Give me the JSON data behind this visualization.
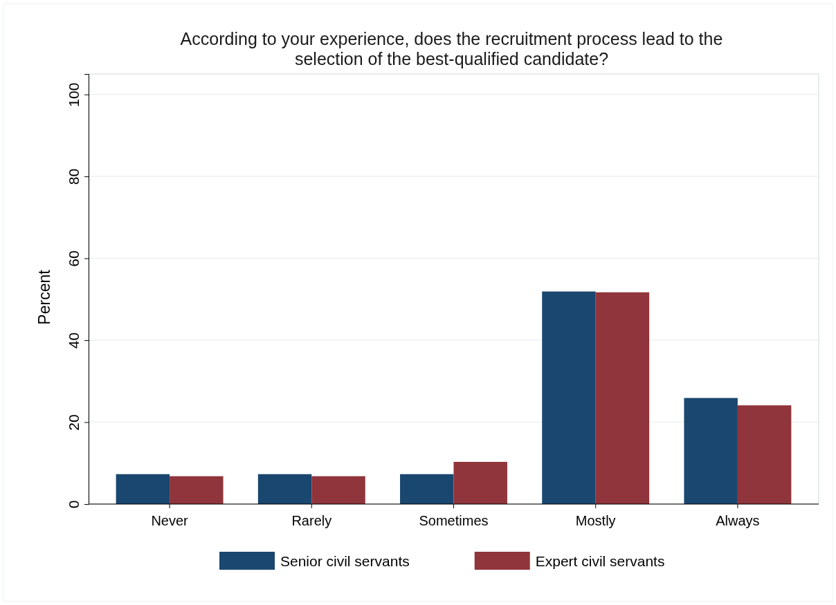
{
  "chart_data": {
    "type": "bar",
    "title": "According to your experience, does the recruitment process lead to the\nselection of the best-qualified candidate?",
    "ylabel": "Percent",
    "categories": [
      "Never",
      "Rarely",
      "Sometimes",
      "Mostly",
      "Always"
    ],
    "series": [
      {
        "name": "Senior civil servants",
        "color": "#1a476f",
        "values": [
          7.3,
          7.3,
          7.3,
          51.9,
          25.9
        ]
      },
      {
        "name": "Expert civil servants",
        "color": "#90353b",
        "values": [
          6.8,
          6.8,
          10.3,
          51.7,
          24.1
        ]
      }
    ],
    "ylim": [
      0,
      105
    ],
    "yticks": [
      0,
      20,
      40,
      60,
      80,
      100
    ],
    "grid": "y",
    "legend": "bottom"
  }
}
